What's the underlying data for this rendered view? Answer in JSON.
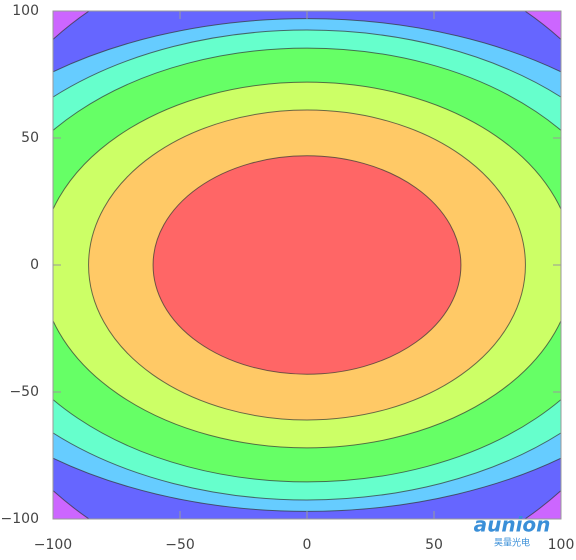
{
  "chart_data": {
    "type": "contour",
    "xlim": [
      -100,
      100
    ],
    "ylim": [
      -100,
      100
    ],
    "xticks": [
      {
        "value": -100,
        "label": "−100"
      },
      {
        "value": -50,
        "label": "−50"
      },
      0,
      50,
      100
    ],
    "yticks": [
      {
        "value": -100,
        "label": "−100"
      },
      {
        "value": -50,
        "label": "−50"
      },
      0,
      50,
      100
    ],
    "background": "#cc66ff",
    "regions": [
      {
        "color": "#6666ff",
        "rx": 141,
        "ry": 126
      },
      {
        "color": "#66ccff",
        "rx": 161,
        "ry": 97
      },
      {
        "color": "#66ffcc",
        "rx": 143,
        "ry": 92.5
      },
      {
        "color": "#66ff66",
        "rx": 127.5,
        "ry": 85.4
      },
      {
        "color": "#ccff66",
        "rx": 105,
        "ry": 72
      },
      {
        "color": "#ffc966",
        "rx": 86,
        "ry": 61
      },
      {
        "color": "#ff6666",
        "rx": 60.6,
        "ry": 43
      }
    ]
  },
  "watermark": {
    "brand": "aunion",
    "subtitle": "昊量光电"
  }
}
